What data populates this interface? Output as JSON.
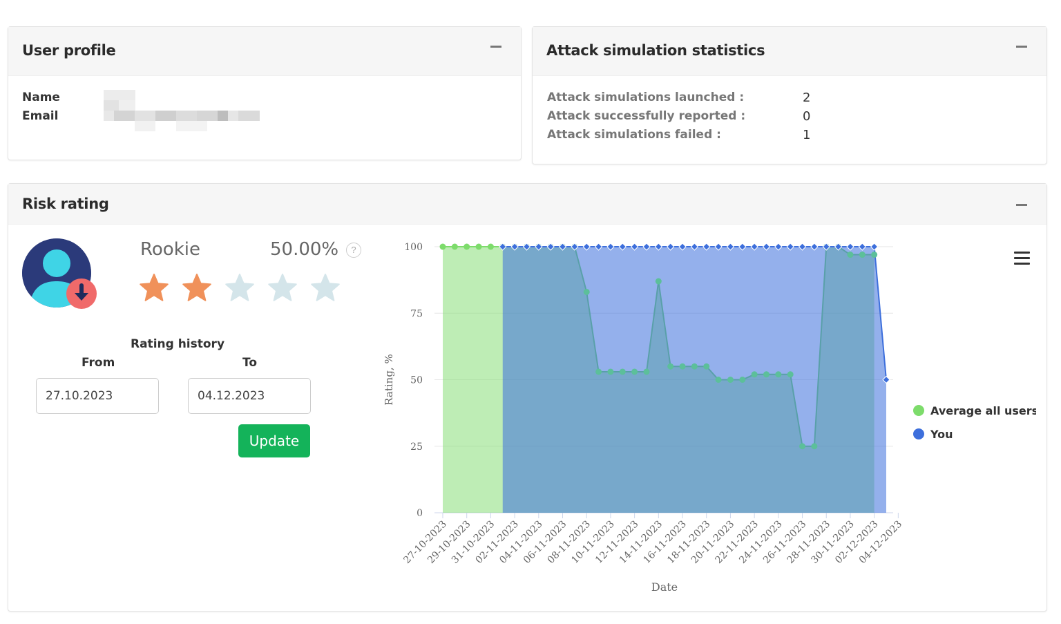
{
  "user_profile": {
    "title": "User profile",
    "name_label": "Name",
    "email_label": "Email"
  },
  "attack_stats": {
    "title": "Attack simulation statistics",
    "rows": [
      {
        "label": "Attack simulations launched :",
        "value": "2"
      },
      {
        "label": "Attack successfully reported :",
        "value": "0"
      },
      {
        "label": "Attack simulations failed :",
        "value": "1"
      }
    ]
  },
  "risk_rating": {
    "title": "Risk rating",
    "level": "Rookie",
    "percent": "50.00%",
    "help": "?",
    "stars_filled": 2,
    "stars_total": 5,
    "rating_history_label": "Rating history",
    "from_label": "From",
    "to_label": "To",
    "from_value": "27.10.2023",
    "to_value": "04.12.2023",
    "update_label": "Update"
  },
  "colors": {
    "star_filled": "#f0915a",
    "star_empty": "#d4e5ea",
    "average_series": "#7ddc6b",
    "you_series": "#3d6fdc",
    "update_button": "#14b35a"
  },
  "chart_data": {
    "type": "area",
    "xlabel": "Date",
    "ylabel": "Rating, %",
    "ylim": [
      0,
      100
    ],
    "yticks": [
      0,
      25,
      50,
      75,
      100
    ],
    "legend_position": "right",
    "x_tick_labels": [
      "27-10-2023",
      "29-10-2023",
      "31-10-2023",
      "02-11-2023",
      "04-11-2023",
      "06-11-2023",
      "08-11-2023",
      "10-11-2023",
      "12-11-2023",
      "14-11-2023",
      "16-11-2023",
      "18-11-2023",
      "20-11-2023",
      "22-11-2023",
      "24-11-2023",
      "26-11-2023",
      "28-11-2023",
      "30-11-2023",
      "02-12-2023",
      "04-12-2023"
    ],
    "series": [
      {
        "name": "Average all users",
        "color": "#7ddc6b",
        "values": [
          100,
          100,
          100,
          100,
          100,
          100,
          100,
          100,
          100,
          100,
          100,
          100,
          83,
          53,
          53,
          53,
          53,
          53,
          87,
          55,
          55,
          55,
          55,
          50,
          50,
          50,
          52,
          52,
          52,
          52,
          25,
          25,
          100,
          100,
          97,
          97,
          97,
          null
        ]
      },
      {
        "name": "You",
        "color": "#3d6fdc",
        "values": [
          null,
          null,
          null,
          null,
          null,
          100,
          100,
          100,
          100,
          100,
          100,
          100,
          100,
          100,
          100,
          100,
          100,
          100,
          100,
          100,
          100,
          100,
          100,
          100,
          100,
          100,
          100,
          100,
          100,
          100,
          100,
          100,
          100,
          100,
          100,
          100,
          100,
          50
        ]
      }
    ]
  }
}
